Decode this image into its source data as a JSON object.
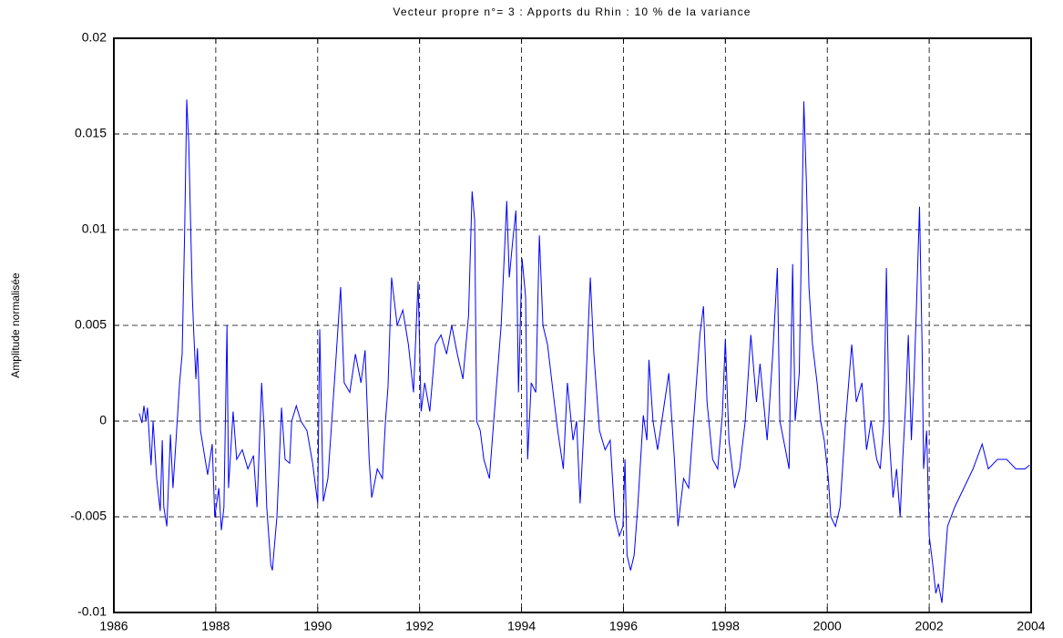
{
  "chart_data": {
    "type": "line",
    "title": "Vecteur propre n°= 3 : Apports du Rhin : 10 % de la variance",
    "y_label": "Amplitude normalisée",
    "color": "#0000ff",
    "grid": true,
    "xlim": [
      1986,
      2004
    ],
    "xticks": [
      1986,
      1988,
      1990,
      1992,
      1994,
      1996,
      1998,
      2000,
      2002,
      2004
    ],
    "ylim": [
      -0.01,
      0.02
    ],
    "yticks": [
      -0.01,
      -0.005,
      0,
      0.005,
      0.01,
      0.015,
      0.02
    ],
    "x": [
      1986.5,
      1986.55,
      1986.59,
      1986.63,
      1986.66,
      1986.73,
      1986.77,
      1986.84,
      1986.91,
      1986.95,
      1986.98,
      1987.04,
      1987.11,
      1987.16,
      1987.22,
      1987.29,
      1987.34,
      1987.39,
      1987.43,
      1987.47,
      1987.5,
      1987.54,
      1987.57,
      1987.61,
      1987.64,
      1987.7,
      1987.84,
      1987.93,
      1987.98,
      1988.06,
      1988.11,
      1988.16,
      1988.22,
      1988.25,
      1988.34,
      1988.41,
      1988.52,
      1988.63,
      1988.74,
      1988.81,
      1988.9,
      1988.95,
      1989.0,
      1989.08,
      1989.11,
      1989.2,
      1989.29,
      1989.36,
      1989.45,
      1989.49,
      1989.58,
      1989.67,
      1989.79,
      1989.9,
      1990.0,
      1990.04,
      1990.11,
      1990.2,
      1990.34,
      1990.45,
      1990.52,
      1990.63,
      1990.74,
      1990.85,
      1990.93,
      1991.01,
      1991.06,
      1991.17,
      1991.27,
      1991.33,
      1991.38,
      1991.45,
      1991.56,
      1991.67,
      1991.78,
      1991.88,
      1991.97,
      1992.03,
      1992.1,
      1992.2,
      1992.31,
      1992.42,
      1992.53,
      1992.63,
      1992.74,
      1992.85,
      1992.96,
      1993.03,
      1993.08,
      1993.12,
      1993.19,
      1993.26,
      1993.37,
      1993.44,
      1993.6,
      1993.71,
      1993.76,
      1993.83,
      1993.89,
      1993.94,
      1994.01,
      1994.08,
      1994.12,
      1994.19,
      1994.28,
      1994.35,
      1994.42,
      1994.51,
      1994.62,
      1994.71,
      1994.82,
      1994.9,
      1995.01,
      1995.08,
      1995.15,
      1995.24,
      1995.35,
      1995.42,
      1995.53,
      1995.64,
      1995.74,
      1995.83,
      1995.92,
      1995.99,
      1996.03,
      1996.07,
      1996.14,
      1996.21,
      1996.28,
      1996.39,
      1996.46,
      1996.5,
      1996.58,
      1996.67,
      1996.78,
      1996.89,
      1997.0,
      1997.07,
      1997.18,
      1997.28,
      1997.39,
      1997.5,
      1997.57,
      1997.64,
      1997.75,
      1997.85,
      1997.94,
      1998.0,
      1998.07,
      1998.18,
      1998.28,
      1998.39,
      1998.5,
      1998.61,
      1998.68,
      1998.75,
      1998.82,
      1998.93,
      1999.02,
      1999.07,
      1999.18,
      1999.25,
      1999.32,
      1999.37,
      1999.45,
      1999.54,
      1999.59,
      1999.64,
      1999.71,
      1999.8,
      1999.87,
      1999.94,
      2000.02,
      2000.07,
      2000.16,
      2000.25,
      2000.36,
      2000.48,
      2000.57,
      2000.68,
      2000.77,
      2000.86,
      2000.97,
      2001.04,
      2001.11,
      2001.16,
      2001.22,
      2001.29,
      2001.36,
      2001.43,
      2001.48,
      2001.54,
      2001.59,
      2001.65,
      2001.7,
      2001.75,
      2001.81,
      2001.86,
      2001.89,
      2001.95,
      2002.0,
      2002.07,
      2002.13,
      2002.18,
      2002.25,
      2002.36,
      2002.5,
      2002.68,
      2002.86,
      2003.04,
      2003.16,
      2003.34,
      2003.52,
      2003.7,
      2003.88,
      2003.97
    ],
    "values": [
      0.0004,
      -0.0001,
      0.0008,
      0,
      0.0007,
      -0.0023,
      0,
      -0.003,
      -0.0047,
      -0.001,
      -0.0045,
      -0.0055,
      -0.0007,
      -0.0035,
      -0.001,
      0.002,
      0.0035,
      0.01,
      0.0168,
      0.0145,
      0.011,
      0.0065,
      0.0045,
      0.0022,
      0.0038,
      -0.0005,
      -0.0028,
      -0.0012,
      -0.005,
      -0.0035,
      -0.0057,
      -0.0045,
      0.005,
      -0.0035,
      0.0005,
      -0.002,
      -0.0015,
      -0.0025,
      -0.0018,
      -0.0045,
      0.002,
      -0.0005,
      -0.0045,
      -0.0075,
      -0.0078,
      -0.005,
      0.0007,
      -0.002,
      -0.0022,
      0,
      0.0008,
      0,
      -0.0005,
      -0.0022,
      -0.0043,
      0.0048,
      -0.0042,
      -0.003,
      0.0025,
      0.007,
      0.002,
      0.0015,
      0.0035,
      0.002,
      0.0037,
      -0.002,
      -0.004,
      -0.0025,
      -0.003,
      0,
      0.0018,
      0.0075,
      0.005,
      0.0058,
      0.004,
      0.0015,
      0.0073,
      0.0005,
      0.002,
      0.0005,
      0.004,
      0.0045,
      0.0035,
      0.005,
      0.0035,
      0.0022,
      0.0055,
      0.012,
      0.0105,
      0,
      -0.0005,
      -0.002,
      -0.003,
      -0.0005,
      0.005,
      0.0115,
      0.0075,
      0.0095,
      0.011,
      0.0015,
      0.0085,
      0.0065,
      -0.002,
      0.002,
      0.0015,
      0.0097,
      0.005,
      0.004,
      0.0015,
      -0.0005,
      -0.0025,
      0.002,
      -0.001,
      0,
      -0.0043,
      0.0005,
      0.0075,
      0.0035,
      -0.0005,
      -0.0015,
      -0.001,
      -0.005,
      -0.006,
      -0.0055,
      -0.002,
      -0.007,
      -0.0078,
      -0.007,
      -0.0045,
      0.0003,
      -0.001,
      0.0032,
      0,
      -0.0015,
      0.0005,
      0.0025,
      -0.002,
      -0.0055,
      -0.003,
      -0.0035,
      0.0005,
      0.0045,
      0.006,
      0.001,
      -0.002,
      -0.0025,
      0.0003,
      0.0043,
      -0.001,
      -0.0035,
      -0.0025,
      0,
      0.0045,
      0.001,
      0.003,
      0.001,
      -0.001,
      0.0035,
      0.008,
      0,
      -0.0015,
      -0.0025,
      0.0082,
      0,
      0.0025,
      0.0167,
      0.0125,
      0.007,
      0.004,
      0.002,
      0,
      -0.001,
      -0.003,
      -0.005,
      -0.0055,
      -0.0045,
      0,
      0.004,
      0.001,
      0.002,
      -0.0015,
      0,
      -0.002,
      -0.0025,
      0,
      0.008,
      -0.001,
      -0.004,
      -0.0025,
      -0.005,
      -0.002,
      0.001,
      0.0045,
      -0.001,
      0.002,
      0.006,
      0.0112,
      0.004,
      -0.0025,
      -0.0005,
      -0.006,
      -0.0075,
      -0.009,
      -0.0085,
      -0.0095,
      -0.0055,
      -0.0045,
      -0.0035,
      -0.0025,
      -0.0012,
      -0.0025,
      -0.002,
      -0.002,
      -0.0025,
      -0.0025,
      -0.0023
    ]
  }
}
